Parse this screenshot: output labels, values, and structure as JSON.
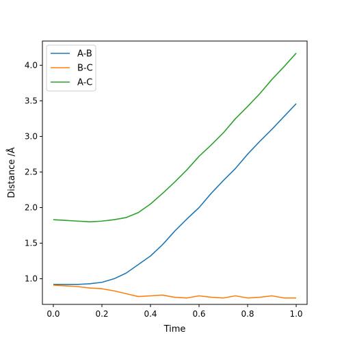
{
  "chart_data": {
    "type": "line",
    "xlabel": "Time",
    "ylabel": "Distance /Å",
    "xlim": [
      -0.045,
      1.045
    ],
    "ylim": [
      0.64,
      4.34
    ],
    "xticks": [
      "0.0",
      "0.2",
      "0.4",
      "0.6",
      "0.8",
      "1.0"
    ],
    "yticks": [
      "1.0",
      "1.5",
      "2.0",
      "2.5",
      "3.0",
      "3.5",
      "4.0"
    ],
    "legend_position": "top-left",
    "grid": false,
    "x": [
      0.0,
      0.05,
      0.1,
      0.15,
      0.2,
      0.25,
      0.3,
      0.35,
      0.4,
      0.45,
      0.5,
      0.55,
      0.6,
      0.65,
      0.7,
      0.75,
      0.8,
      0.85,
      0.9,
      0.95,
      1.0
    ],
    "series": [
      {
        "name": "A-B",
        "color": "#1f77b4",
        "values": [
          0.92,
          0.92,
          0.92,
          0.93,
          0.95,
          1.0,
          1.08,
          1.2,
          1.32,
          1.48,
          1.67,
          1.84,
          2.0,
          2.2,
          2.38,
          2.55,
          2.75,
          2.93,
          3.1,
          3.28,
          3.46
        ]
      },
      {
        "name": "B-C",
        "color": "#ff7f0e",
        "values": [
          0.91,
          0.9,
          0.89,
          0.87,
          0.86,
          0.83,
          0.79,
          0.75,
          0.76,
          0.77,
          0.74,
          0.73,
          0.76,
          0.74,
          0.73,
          0.76,
          0.73,
          0.74,
          0.76,
          0.73,
          0.73
        ]
      },
      {
        "name": "A-C",
        "color": "#2ca02c",
        "values": [
          1.83,
          1.82,
          1.81,
          1.8,
          1.81,
          1.83,
          1.86,
          1.93,
          2.05,
          2.2,
          2.36,
          2.53,
          2.72,
          2.88,
          3.05,
          3.25,
          3.42,
          3.6,
          3.8,
          3.98,
          4.17
        ]
      }
    ]
  }
}
